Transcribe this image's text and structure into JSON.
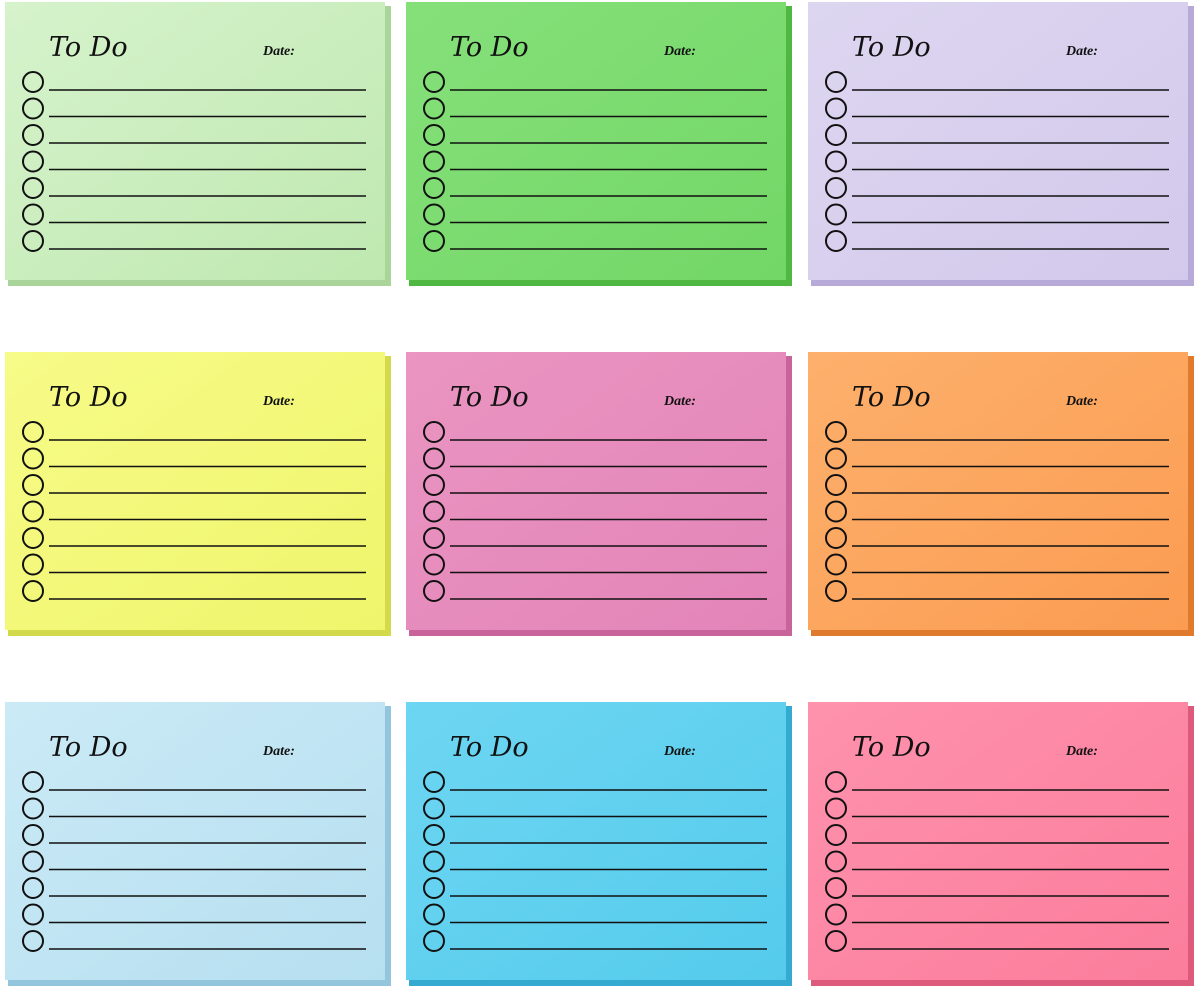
{
  "notes": [
    {
      "title": "To Do",
      "date_label": "Date:"
    },
    {
      "title": "To Do",
      "date_label": "Date:"
    },
    {
      "title": "To Do",
      "date_label": "Date:"
    },
    {
      "title": "To Do",
      "date_label": "Date:"
    },
    {
      "title": "To Do",
      "date_label": "Date:"
    },
    {
      "title": "To Do",
      "date_label": "Date:"
    },
    {
      "title": "To Do",
      "date_label": "Date:"
    },
    {
      "title": "To Do",
      "date_label": "Date:"
    },
    {
      "title": "To Do",
      "date_label": "Date:"
    }
  ]
}
